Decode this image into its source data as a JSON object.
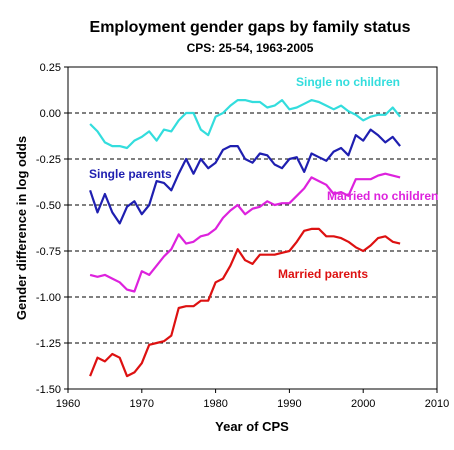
{
  "chart_data": {
    "type": "line",
    "title": "Employment gender gaps by family status",
    "subtitle": "CPS: 25-54, 1963-2005",
    "xlabel": "Year of CPS",
    "ylabel": "Gender difference in log odds",
    "xlim": [
      1960,
      2010
    ],
    "ylim": [
      -1.5,
      0.25
    ],
    "xticks": [
      "1960",
      "1970",
      "1980",
      "1990",
      "2000",
      "2010"
    ],
    "yticks": [
      "0.25",
      "0.00",
      "-0.25",
      "-0.50",
      "-0.75",
      "-1.00",
      "-1.25",
      "-1.50"
    ],
    "grid": "dashed horizontal",
    "x": [
      1963,
      1964,
      1965,
      1966,
      1967,
      1968,
      1969,
      1970,
      1971,
      1972,
      1973,
      1974,
      1975,
      1976,
      1977,
      1978,
      1979,
      1980,
      1981,
      1982,
      1983,
      1984,
      1985,
      1986,
      1987,
      1988,
      1989,
      1990,
      1991,
      1992,
      1993,
      1994,
      1995,
      1996,
      1997,
      1998,
      1999,
      2000,
      2001,
      2002,
      2003,
      2004,
      2005
    ],
    "series": [
      {
        "name": "Single no children",
        "color": "#33dddd",
        "values": [
          -0.06,
          -0.1,
          -0.16,
          -0.18,
          -0.18,
          -0.19,
          -0.15,
          -0.13,
          -0.1,
          -0.15,
          -0.09,
          -0.1,
          -0.04,
          0.0,
          0.0,
          -0.09,
          -0.12,
          -0.02,
          0.0,
          0.04,
          0.07,
          0.07,
          0.06,
          0.06,
          0.03,
          0.04,
          0.07,
          0.02,
          0.03,
          0.05,
          0.07,
          0.06,
          0.04,
          0.02,
          0.04,
          0.01,
          -0.01,
          -0.04,
          -0.02,
          -0.01,
          -0.01,
          0.03,
          -0.02
        ]
      },
      {
        "name": "Single parents",
        "color": "#1f1fb0",
        "values": [
          -0.42,
          -0.54,
          -0.44,
          -0.54,
          -0.6,
          -0.51,
          -0.48,
          -0.55,
          -0.5,
          -0.37,
          -0.38,
          -0.42,
          -0.33,
          -0.25,
          -0.33,
          -0.25,
          -0.3,
          -0.27,
          -0.2,
          -0.18,
          -0.18,
          -0.25,
          -0.27,
          -0.22,
          -0.23,
          -0.28,
          -0.3,
          -0.25,
          -0.24,
          -0.32,
          -0.22,
          -0.24,
          -0.26,
          -0.21,
          -0.19,
          -0.23,
          -0.12,
          -0.15,
          -0.09,
          -0.12,
          -0.16,
          -0.13,
          -0.18
        ]
      },
      {
        "name": "Married no children",
        "color": "#dd22dd",
        "values": [
          -0.88,
          -0.89,
          -0.88,
          -0.9,
          -0.92,
          -0.96,
          -0.97,
          -0.86,
          -0.88,
          -0.83,
          -0.78,
          -0.74,
          -0.66,
          -0.71,
          -0.7,
          -0.67,
          -0.66,
          -0.63,
          -0.57,
          -0.53,
          -0.5,
          -0.55,
          -0.52,
          -0.51,
          -0.48,
          -0.5,
          -0.49,
          -0.49,
          -0.45,
          -0.41,
          -0.35,
          -0.37,
          -0.39,
          -0.44,
          -0.43,
          -0.45,
          -0.36,
          -0.36,
          -0.36,
          -0.34,
          -0.33,
          -0.34,
          -0.35
        ]
      },
      {
        "name": "Married parents",
        "color": "#dd1111",
        "values": [
          -1.43,
          -1.33,
          -1.35,
          -1.31,
          -1.33,
          -1.43,
          -1.41,
          -1.36,
          -1.26,
          -1.25,
          -1.24,
          -1.21,
          -1.06,
          -1.05,
          -1.05,
          -1.02,
          -1.02,
          -0.92,
          -0.9,
          -0.83,
          -0.74,
          -0.8,
          -0.82,
          -0.77,
          -0.77,
          -0.77,
          -0.76,
          -0.75,
          -0.7,
          -0.64,
          -0.63,
          -0.63,
          -0.67,
          -0.67,
          -0.68,
          -0.7,
          -0.73,
          -0.75,
          -0.72,
          -0.68,
          -0.67,
          -0.7,
          -0.71
        ]
      }
    ]
  }
}
